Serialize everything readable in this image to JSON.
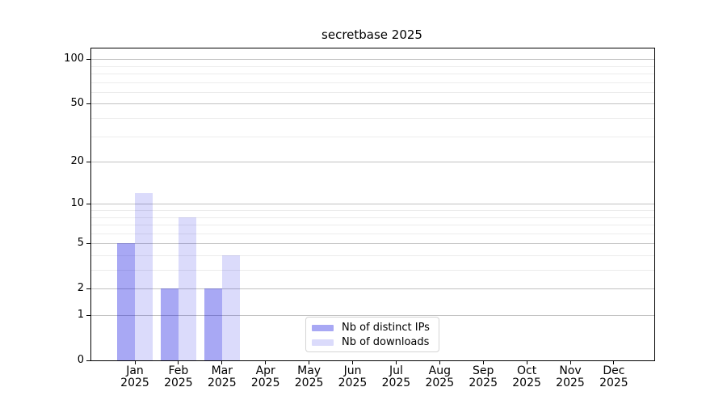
{
  "title": "secretbase 2025",
  "colors": {
    "background": "#ffffff",
    "axis": "#000000",
    "grid_major": "#c2c2c2",
    "grid_minor": "#ececec",
    "legend_border": "#d5d5d5",
    "bar_ips": "rgba(0,0,224,0.34)",
    "bar_downloads": "rgba(0,0,224,0.14)",
    "bar_ips_flat": "#a9a9f7",
    "bar_downloads_flat": "#dcdcfa"
  },
  "legend": {
    "items": [
      "Nb of distinct IPs",
      "Nb of downloads"
    ]
  },
  "chart_data": {
    "type": "bar",
    "title": "secretbase 2025",
    "categories": [
      "Jan 2025",
      "Feb 2025",
      "Mar 2025",
      "Apr 2025",
      "May 2025",
      "Jun 2025",
      "Jul 2025",
      "Aug 2025",
      "Sep 2025",
      "Oct 2025",
      "Nov 2025",
      "Dec 2025"
    ],
    "series": [
      {
        "name": "Nb of distinct IPs",
        "color": "rgba(0,0,224,0.34)",
        "values": [
          5,
          2,
          2,
          0,
          0,
          0,
          0,
          0,
          0,
          0,
          0,
          0
        ]
      },
      {
        "name": "Nb of downloads",
        "color": "rgba(0,0,224,0.14)",
        "values": [
          12,
          8,
          4,
          0,
          0,
          0,
          0,
          0,
          0,
          0,
          0,
          0
        ]
      }
    ],
    "xlabel": "",
    "ylabel": "",
    "yscale": "log1p",
    "ylim": [
      0,
      118
    ],
    "ytick_values": [
      0,
      1,
      2,
      5,
      10,
      20,
      50,
      100
    ],
    "yticks_minor": [
      3,
      4,
      6,
      7,
      8,
      9,
      30,
      40,
      60,
      70,
      80,
      90
    ],
    "grid": "horizontal",
    "legend_position": "lower center"
  }
}
